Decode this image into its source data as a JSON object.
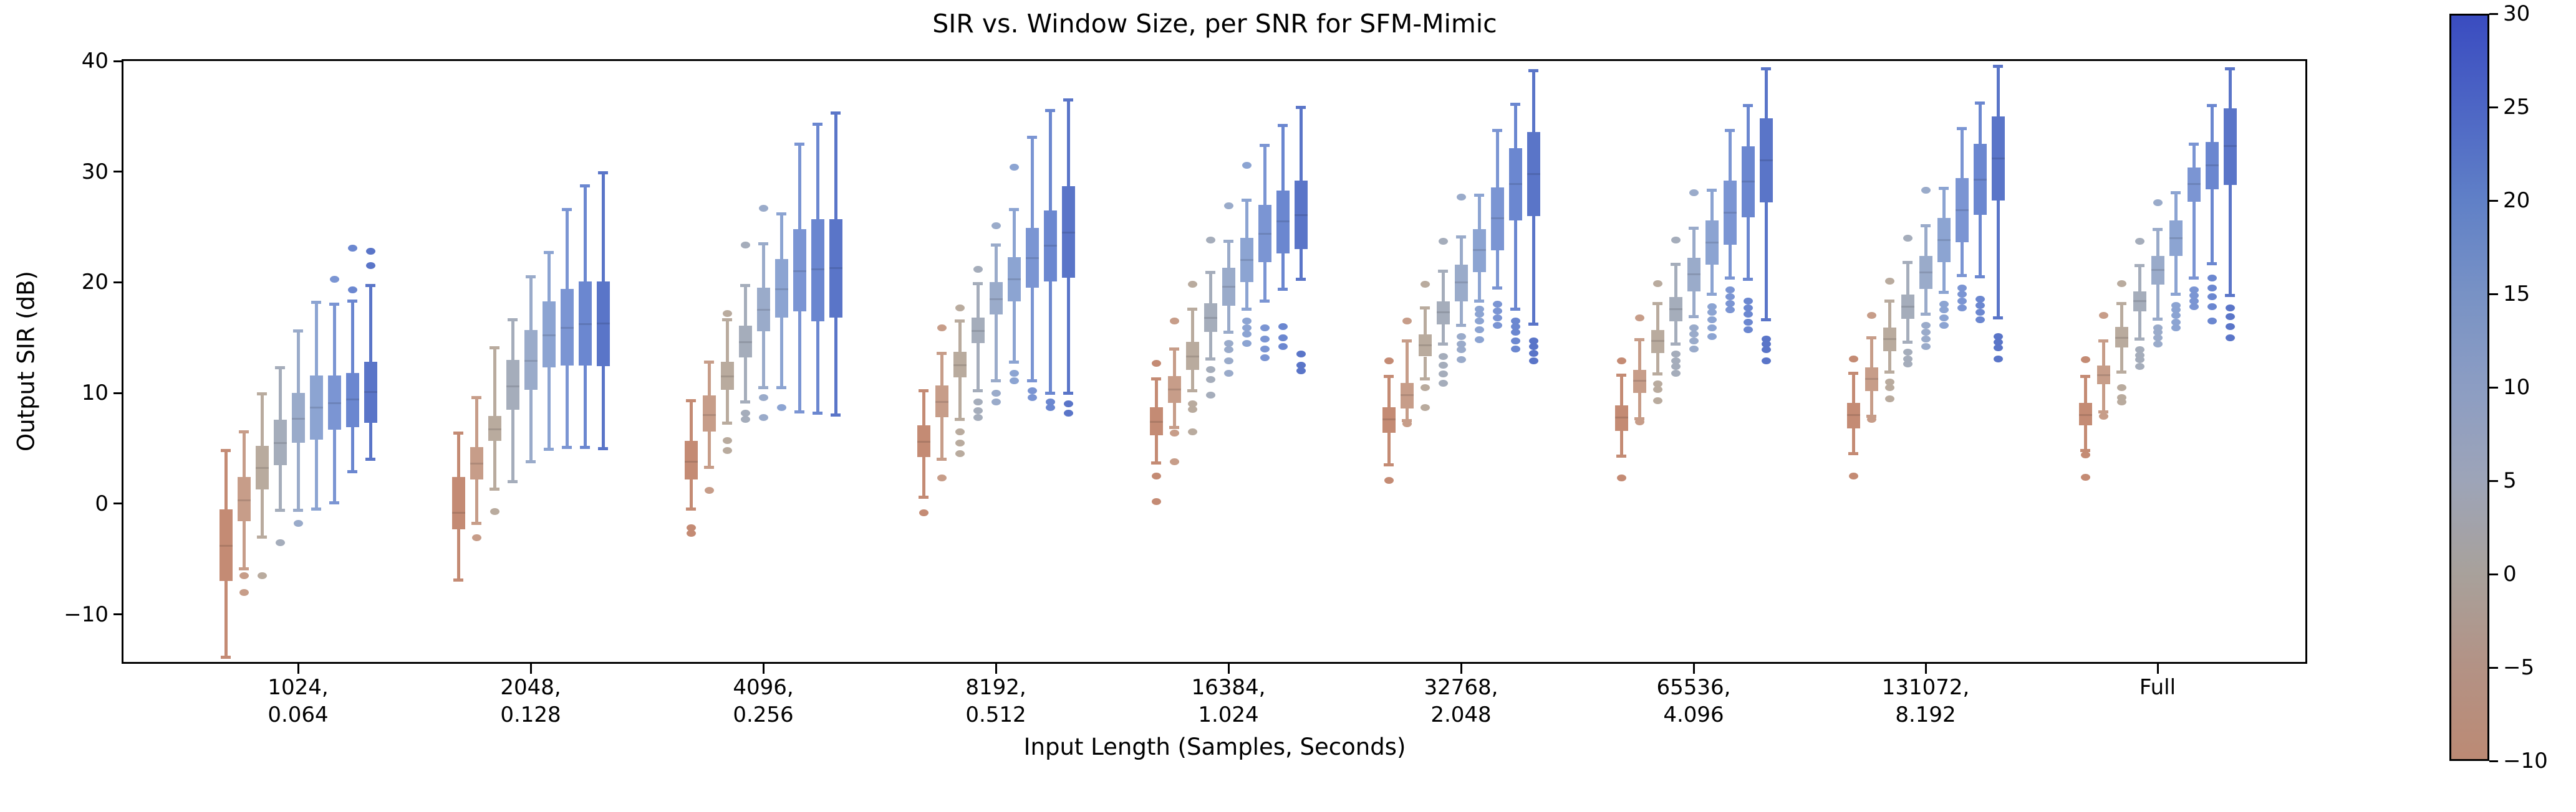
{
  "title": "SIR vs. Window Size, per SNR for SFM-Mimic",
  "chart_data": {
    "type": "boxplot",
    "title": "SIR vs. Window Size, per SNR for SFM-Mimic",
    "xlabel": "Input Length (Samples, Seconds)",
    "ylabel": "Output SIR (dB)",
    "ylim": [
      -14.3,
      40
    ],
    "grid": false,
    "legend_position": "colorbar-right",
    "yticks": [
      {
        "v": 40,
        "label": "40"
      },
      {
        "v": 30,
        "label": "30"
      },
      {
        "v": 20,
        "label": "20"
      },
      {
        "v": 10,
        "label": "10"
      },
      {
        "v": 0,
        "label": "0"
      },
      {
        "v": -10,
        "label": "−10"
      }
    ],
    "snr_levels": [
      -10,
      -5,
      0,
      5,
      10,
      15,
      20,
      25,
      30
    ],
    "series_colors": [
      "#c48b74",
      "#c79d89",
      "#b9ab9e",
      "#a5adbb",
      "#9aabca",
      "#8ca4d2",
      "#7b95d3",
      "#6b87d0",
      "#5a75c8"
    ],
    "box_stats_order": [
      "whislo",
      "q1",
      "med",
      "q3",
      "whishi"
    ],
    "groups": [
      {
        "label_line1": "1024,",
        "label_line2": "0.064",
        "boxes": [
          [
            -13.9,
            -7.0,
            -3.8,
            -0.5,
            4.8
          ],
          [
            -5.9,
            -1.6,
            0.3,
            2.4,
            6.5
          ],
          [
            -3.0,
            1.3,
            3.2,
            5.2,
            9.9
          ],
          [
            -0.6,
            3.5,
            5.5,
            7.6,
            12.3
          ],
          [
            -0.6,
            5.5,
            7.7,
            10.0,
            15.6
          ],
          [
            -0.5,
            5.8,
            8.7,
            11.6,
            18.2
          ],
          [
            0.1,
            6.7,
            9.1,
            11.6,
            18.0
          ],
          [
            2.9,
            6.9,
            9.4,
            11.8,
            18.3
          ],
          [
            4.0,
            7.3,
            10.1,
            12.8,
            19.7
          ]
        ],
        "fliers": [
          [],
          [
            -6.5,
            -8.0
          ],
          [
            -6.5
          ],
          [
            -3.5
          ],
          [
            -1.8
          ],
          [],
          [
            20.3
          ],
          [
            23.1,
            19.3
          ],
          [
            22.8,
            21.5
          ]
        ]
      },
      {
        "label_line1": "2048,",
        "label_line2": "0.128",
        "boxes": [
          [
            -6.9,
            -2.3,
            -0.8,
            2.4,
            6.4
          ],
          [
            -1.8,
            2.2,
            3.6,
            5.1,
            9.6
          ],
          [
            1.3,
            5.7,
            6.7,
            7.9,
            14.1
          ],
          [
            2.0,
            8.5,
            10.6,
            13.0,
            16.6
          ],
          [
            3.8,
            10.3,
            12.9,
            15.7,
            20.5
          ],
          [
            4.9,
            12.3,
            15.2,
            18.3,
            22.7
          ],
          [
            5.1,
            12.5,
            15.9,
            19.4,
            26.6
          ],
          [
            5.1,
            12.5,
            16.2,
            20.1,
            28.7
          ],
          [
            5.0,
            12.4,
            16.3,
            20.1,
            29.9
          ]
        ],
        "fliers": [
          [],
          [
            -3.1
          ],
          [
            -0.7
          ],
          [],
          [],
          [],
          [],
          [],
          []
        ]
      },
      {
        "label_line1": "4096,",
        "label_line2": "0.256",
        "boxes": [
          [
            -0.5,
            2.2,
            3.8,
            5.7,
            9.3
          ],
          [
            3.3,
            6.5,
            8.0,
            9.8,
            12.8
          ],
          [
            7.3,
            10.3,
            11.5,
            12.8,
            16.6
          ],
          [
            9.2,
            13.2,
            14.6,
            16.1,
            19.7
          ],
          [
            10.5,
            15.6,
            17.5,
            19.5,
            23.5
          ],
          [
            10.5,
            16.8,
            19.4,
            22.1,
            26.2
          ],
          [
            8.3,
            17.4,
            21.0,
            24.8,
            32.5
          ],
          [
            8.2,
            16.5,
            21.2,
            25.7,
            34.3
          ],
          [
            8.0,
            16.8,
            21.3,
            25.7,
            35.3
          ]
        ],
        "fliers": [
          [
            -2.2,
            -2.7
          ],
          [
            1.2
          ],
          [
            17.2,
            5.7,
            4.8
          ],
          [
            23.4,
            8.2,
            7.6
          ],
          [
            26.7,
            9.6,
            7.8
          ],
          [
            8.7
          ],
          [],
          [],
          []
        ]
      },
      {
        "label_line1": "8192,",
        "label_line2": "0.512",
        "boxes": [
          [
            0.6,
            4.2,
            5.6,
            7.1,
            10.2
          ],
          [
            4.0,
            7.8,
            9.2,
            10.7,
            13.6
          ],
          [
            7.6,
            11.4,
            12.5,
            13.7,
            16.5
          ],
          [
            10.2,
            14.5,
            15.6,
            16.8,
            19.9
          ],
          [
            11.1,
            17.1,
            18.5,
            20.0,
            23.4
          ],
          [
            12.8,
            18.3,
            20.3,
            22.3,
            26.6
          ],
          [
            11.1,
            19.5,
            22.2,
            24.9,
            33.1
          ],
          [
            10.0,
            20.1,
            23.3,
            26.5,
            35.5
          ],
          [
            10.0,
            20.4,
            24.5,
            28.7,
            36.5
          ]
        ],
        "fliers": [
          [
            -0.8
          ],
          [
            15.9,
            2.3
          ],
          [
            17.7,
            6.5,
            5.5,
            4.5
          ],
          [
            21.2,
            9.2,
            8.4,
            7.8
          ],
          [
            25.1,
            10.0,
            9.2
          ],
          [
            30.4,
            11.8,
            11.1
          ],
          [
            10.2,
            9.6
          ],
          [
            9.2,
            8.7
          ],
          [
            9.0,
            8.2
          ]
        ]
      },
      {
        "label_line1": "16384,",
        "label_line2": "1.024",
        "boxes": [
          [
            3.7,
            6.2,
            7.4,
            8.7,
            11.3
          ],
          [
            6.9,
            9.1,
            10.3,
            11.5,
            14.0
          ],
          [
            10.2,
            12.1,
            13.3,
            14.6,
            17.6
          ],
          [
            13.1,
            15.5,
            16.8,
            18.1,
            20.9
          ],
          [
            15.5,
            17.9,
            19.6,
            21.3,
            23.7
          ],
          [
            17.6,
            20.0,
            22.0,
            24.0,
            27.4
          ],
          [
            18.3,
            21.8,
            24.4,
            27.0,
            32.4
          ],
          [
            19.4,
            22.6,
            25.5,
            28.3,
            34.2
          ],
          [
            20.3,
            23.0,
            26.1,
            29.2,
            35.8
          ]
        ],
        "fliers": [
          [
            12.7,
            2.5,
            0.2
          ],
          [
            16.5,
            6.4,
            3.8
          ],
          [
            19.8,
            9.0,
            8.5,
            6.5
          ],
          [
            23.8,
            12.1,
            11.2,
            9.8
          ],
          [
            26.9,
            14.5,
            13.9,
            12.9,
            11.8
          ],
          [
            30.6,
            16.5,
            15.9,
            15.3,
            14.5
          ],
          [
            15.9,
            14.9,
            14.0,
            13.2
          ],
          [
            16.0,
            15.0,
            14.2
          ],
          [
            13.5,
            12.5,
            12.0
          ]
        ]
      },
      {
        "label_line1": "32768,",
        "label_line2": "2.048",
        "boxes": [
          [
            3.5,
            6.4,
            7.6,
            8.7,
            11.5
          ],
          [
            7.5,
            8.6,
            9.8,
            10.9,
            14.7
          ],
          [
            11.3,
            13.3,
            14.3,
            15.3,
            17.7
          ],
          [
            14.4,
            16.2,
            17.3,
            18.3,
            21.0
          ],
          [
            16.1,
            18.3,
            20.0,
            21.6,
            24.1
          ],
          [
            18.3,
            20.9,
            22.9,
            24.8,
            27.9
          ],
          [
            19.5,
            22.9,
            25.8,
            28.6,
            33.7
          ],
          [
            17.6,
            25.6,
            28.9,
            32.1,
            36.1
          ],
          [
            16.2,
            26.0,
            29.8,
            33.6,
            39.1
          ]
        ],
        "fliers": [
          [
            12.9,
            2.1
          ],
          [
            16.5,
            7.2
          ],
          [
            19.8,
            10.5,
            8.7
          ],
          [
            23.7,
            13.3,
            12.5,
            11.7,
            10.9
          ],
          [
            27.7,
            15.1,
            14.4,
            13.9,
            13.0
          ],
          [
            17.6,
            17.1,
            16.5,
            15.7,
            14.8
          ],
          [
            18.0,
            17.4,
            16.8,
            16.1
          ],
          [
            16.5,
            16.0,
            15.5,
            14.7,
            14.0
          ],
          [
            14.7,
            14.2,
            13.6,
            12.9
          ]
        ]
      },
      {
        "label_line1": "65536,",
        "label_line2": "4.096",
        "boxes": [
          [
            4.3,
            6.6,
            7.8,
            8.9,
            11.6
          ],
          [
            7.7,
            10.0,
            11.1,
            12.1,
            14.8
          ],
          [
            11.7,
            13.6,
            14.7,
            15.7,
            18.1
          ],
          [
            14.4,
            16.5,
            17.6,
            18.7,
            21.6
          ],
          [
            16.9,
            19.2,
            20.7,
            22.2,
            24.9
          ],
          [
            18.9,
            21.6,
            23.6,
            25.6,
            28.3
          ],
          [
            20.4,
            23.4,
            26.3,
            29.2,
            33.7
          ],
          [
            20.3,
            25.9,
            29.1,
            32.3,
            36.0
          ],
          [
            16.6,
            27.2,
            31.0,
            34.8,
            39.3
          ]
        ],
        "fliers": [
          [
            12.9,
            2.3
          ],
          [
            16.8,
            7.4
          ],
          [
            19.9,
            10.8,
            10.3,
            9.3
          ],
          [
            23.8,
            13.5,
            12.9,
            12.4,
            11.8
          ],
          [
            28.1,
            15.9,
            15.3,
            14.7,
            14.0
          ],
          [
            17.8,
            17.3,
            16.6,
            15.9,
            15.1
          ],
          [
            19.3,
            18.7,
            18.1,
            17.5
          ],
          [
            18.3,
            17.7,
            17.1,
            16.4,
            15.7
          ],
          [
            14.9,
            14.4,
            13.9,
            12.9
          ]
        ]
      },
      {
        "label_line1": "131072,",
        "label_line2": "8.192",
        "boxes": [
          [
            4.5,
            6.8,
            8.0,
            9.1,
            11.8
          ],
          [
            7.9,
            10.2,
            11.3,
            12.3,
            15.0
          ],
          [
            11.9,
            13.8,
            14.9,
            15.9,
            18.3
          ],
          [
            14.6,
            16.7,
            17.8,
            18.9,
            21.8
          ],
          [
            17.1,
            19.4,
            20.9,
            22.4,
            25.1
          ],
          [
            19.1,
            21.8,
            23.8,
            25.8,
            28.5
          ],
          [
            20.6,
            23.6,
            26.5,
            29.4,
            33.9
          ],
          [
            20.5,
            26.1,
            29.3,
            32.5,
            36.2
          ],
          [
            16.8,
            27.4,
            31.2,
            35.0,
            39.5
          ]
        ],
        "fliers": [
          [
            13.1,
            2.5
          ],
          [
            17.0,
            7.6
          ],
          [
            20.1,
            11.0,
            10.5,
            9.5
          ],
          [
            24.0,
            13.7,
            13.1,
            12.6
          ],
          [
            28.3,
            16.1,
            15.5,
            14.9,
            14.2
          ],
          [
            18.0,
            17.5,
            16.8,
            16.1
          ],
          [
            19.5,
            18.9,
            18.3,
            17.7
          ],
          [
            18.5,
            17.9,
            17.3,
            16.6
          ],
          [
            15.1,
            14.6,
            14.1,
            13.1
          ]
        ]
      },
      {
        "label_line1": "Full",
        "label_line2": "",
        "boxes": [
          [
            4.8,
            7.1,
            8.0,
            9.1,
            11.5
          ],
          [
            8.3,
            10.8,
            11.6,
            12.5,
            14.7
          ],
          [
            11.9,
            14.1,
            15.0,
            16.0,
            18.1
          ],
          [
            14.9,
            17.4,
            18.3,
            19.2,
            21.5
          ],
          [
            16.7,
            19.8,
            21.1,
            22.4,
            24.8
          ],
          [
            18.9,
            22.4,
            24.0,
            25.6,
            28.1
          ],
          [
            20.4,
            27.3,
            28.9,
            30.4,
            32.5
          ],
          [
            21.7,
            28.4,
            30.6,
            32.7,
            36.0
          ],
          [
            18.8,
            28.8,
            32.3,
            35.7,
            39.3
          ]
        ],
        "fliers": [
          [
            13.0,
            4.4,
            2.4
          ],
          [
            17.0,
            7.9
          ],
          [
            19.9,
            10.5,
            9.6,
            9.2
          ],
          [
            23.7,
            13.9,
            13.4,
            13.0,
            12.4
          ],
          [
            27.2,
            15.9,
            15.5,
            15.0,
            14.4
          ],
          [
            17.9,
            17.5,
            17.0,
            16.4,
            15.9
          ],
          [
            19.3,
            18.8,
            18.3,
            17.8
          ],
          [
            20.4,
            19.5,
            18.7,
            17.8,
            16.5
          ],
          [
            17.7,
            16.9,
            16.0,
            15.0
          ]
        ]
      }
    ]
  },
  "colorbar": {
    "min": -10,
    "max": 30,
    "ticks": [
      {
        "v": 30,
        "label": "30"
      },
      {
        "v": 25,
        "label": "25"
      },
      {
        "v": 20,
        "label": "20"
      },
      {
        "v": 15,
        "label": "15"
      },
      {
        "v": 10,
        "label": "10"
      },
      {
        "v": 5,
        "label": "5"
      },
      {
        "v": 0,
        "label": "0"
      },
      {
        "v": -5,
        "label": "−5"
      },
      {
        "v": -10,
        "label": "−10"
      }
    ],
    "gradient_stops_bottom_to_top": [
      "#bc8a74",
      "#b39285",
      "#a8a19b",
      "#9da4b8",
      "#8c9dc3",
      "#7892c5",
      "#6080c7",
      "#4d66c5",
      "#3a4cc0"
    ]
  }
}
